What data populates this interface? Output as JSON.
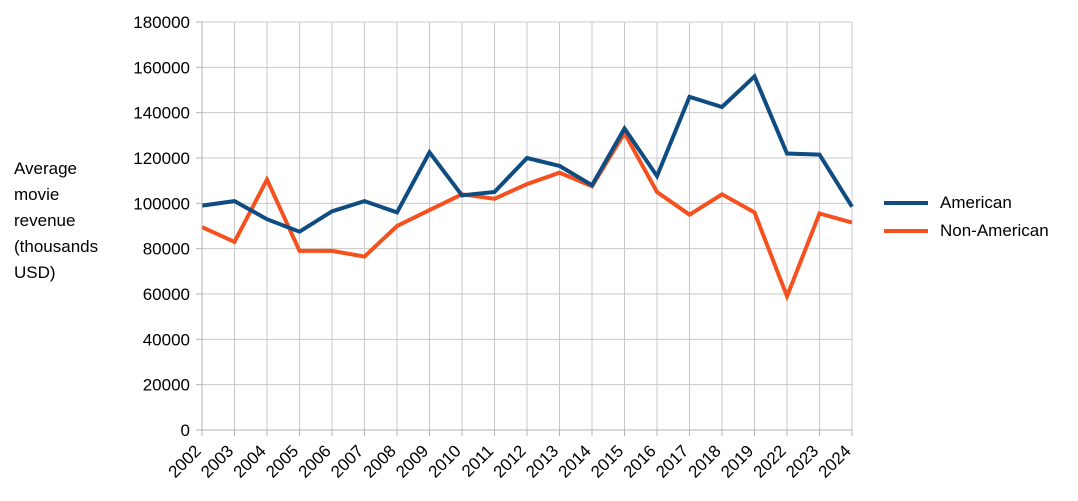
{
  "chart_data": {
    "type": "line",
    "title": "",
    "xlabel": "",
    "ylabel_lines": [
      "Average",
      "movie",
      "revenue",
      "(thousands",
      "USD)"
    ],
    "ylim": [
      0,
      180000
    ],
    "y_ticks": [
      0,
      20000,
      40000,
      60000,
      80000,
      100000,
      120000,
      140000,
      160000,
      180000
    ],
    "grid": true,
    "legend_position": "right",
    "categories": [
      "2002",
      "2003",
      "2004",
      "2005",
      "2006",
      "2007",
      "2008",
      "2009",
      "2010",
      "2011",
      "2012",
      "2013",
      "2014",
      "2015",
      "2016",
      "2017",
      "2018",
      "2019",
      "2022",
      "2023",
      "2024"
    ],
    "series": [
      {
        "name": "American",
        "color": "#0f4c81",
        "values": [
          99000,
          101000,
          93000,
          87500,
          96500,
          101000,
          96000,
          122500,
          103500,
          105000,
          120000,
          116500,
          108000,
          133000,
          112000,
          147000,
          142500,
          156000,
          122000,
          121500,
          98500
        ]
      },
      {
        "name": "Non-American",
        "color": "#f4511e",
        "values": [
          89500,
          83000,
          110500,
          79000,
          79000,
          76500,
          90000,
          97000,
          104000,
          102000,
          108500,
          113500,
          107500,
          131000,
          105000,
          95000,
          104000,
          96000,
          59000,
          95500,
          91500
        ]
      }
    ]
  }
}
